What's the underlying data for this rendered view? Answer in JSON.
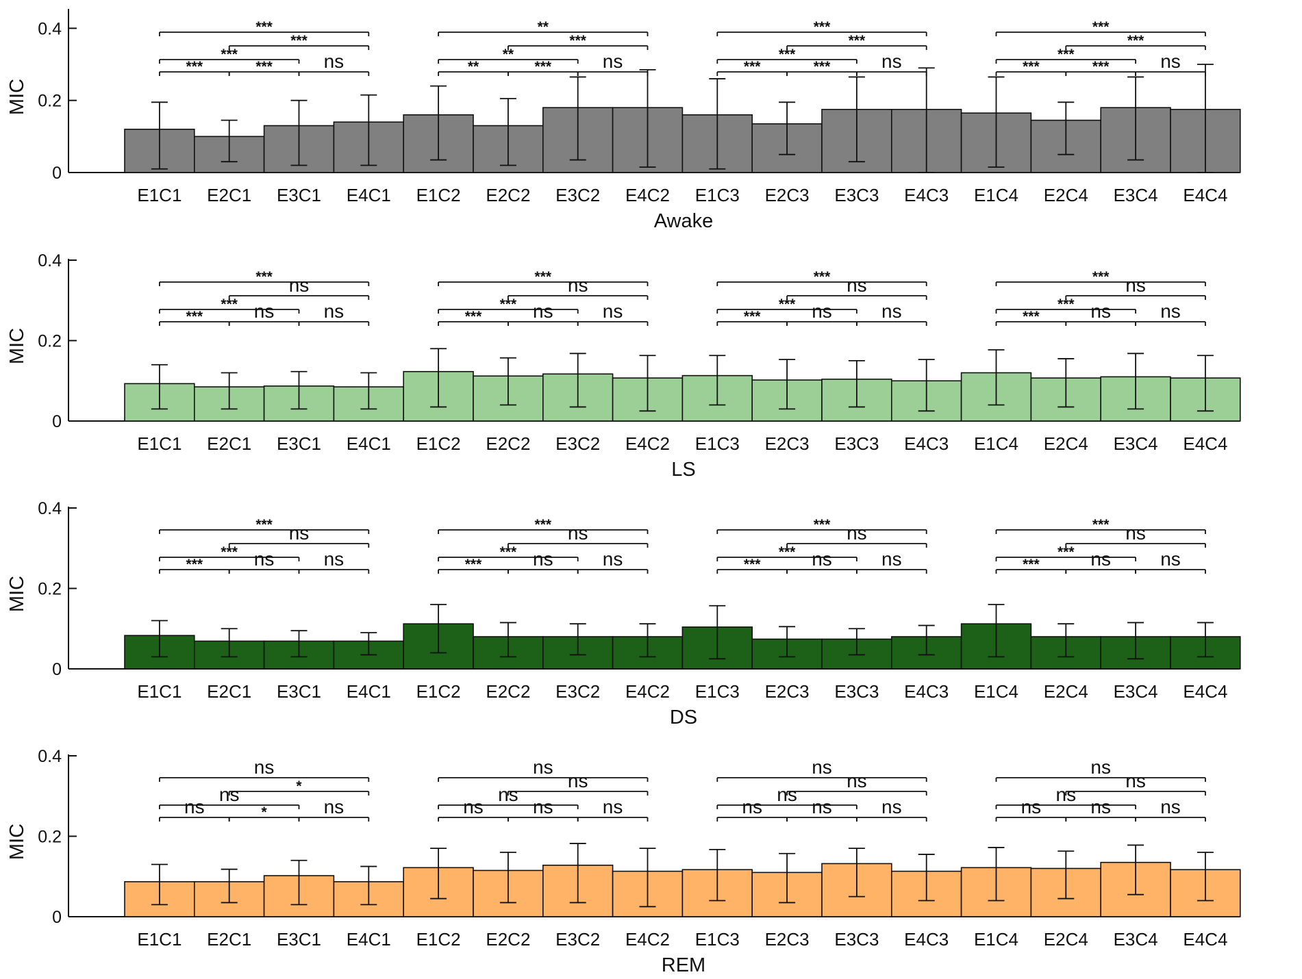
{
  "chart_data": [
    {
      "type": "bar",
      "title": "",
      "xlabel": "Awake",
      "ylabel": "MIC",
      "ylim": [
        0,
        0.45
      ],
      "yticks": [
        "0",
        "0.2",
        "0.4"
      ],
      "color": "#808080",
      "categories": [
        "E1C1",
        "E2C1",
        "E3C1",
        "E4C1",
        "E1C2",
        "E2C2",
        "E3C2",
        "E4C2",
        "E1C3",
        "E2C3",
        "E3C3",
        "E4C3",
        "E1C4",
        "E2C4",
        "E3C4",
        "E4C4"
      ],
      "values": [
        0.12,
        0.1,
        0.13,
        0.14,
        0.16,
        0.13,
        0.18,
        0.18,
        0.16,
        0.135,
        0.175,
        0.175,
        0.165,
        0.145,
        0.18,
        0.175
      ],
      "error_low": [
        0.01,
        0.03,
        0.02,
        0.02,
        0.035,
        0.02,
        0.035,
        0.015,
        0.01,
        0.05,
        0.03,
        0.0,
        0.015,
        0.05,
        0.035,
        0.0
      ],
      "error_high": [
        0.195,
        0.145,
        0.2,
        0.215,
        0.24,
        0.205,
        0.265,
        0.285,
        0.26,
        0.195,
        0.265,
        0.29,
        0.265,
        0.195,
        0.265,
        0.3
      ],
      "significance": [
        {
          "group": 1,
          "from": 1,
          "to": 2,
          "label": "***",
          "level": 0
        },
        {
          "group": 1,
          "from": 2,
          "to": 3,
          "label": "***",
          "level": 0
        },
        {
          "group": 1,
          "from": 3,
          "to": 4,
          "label": "ns",
          "level": 0
        },
        {
          "group": 1,
          "from": 1,
          "to": 3,
          "label": "***",
          "level": 1
        },
        {
          "group": 1,
          "from": 2,
          "to": 4,
          "label": "***",
          "level": 2
        },
        {
          "group": 1,
          "from": 1,
          "to": 4,
          "label": "***",
          "level": 3
        },
        {
          "group": 2,
          "from": 1,
          "to": 2,
          "label": "**",
          "level": 0
        },
        {
          "group": 2,
          "from": 2,
          "to": 3,
          "label": "***",
          "level": 0
        },
        {
          "group": 2,
          "from": 3,
          "to": 4,
          "label": "ns",
          "level": 0
        },
        {
          "group": 2,
          "from": 1,
          "to": 3,
          "label": "**",
          "level": 1
        },
        {
          "group": 2,
          "from": 2,
          "to": 4,
          "label": "***",
          "level": 2
        },
        {
          "group": 2,
          "from": 1,
          "to": 4,
          "label": "**",
          "level": 3
        },
        {
          "group": 3,
          "from": 1,
          "to": 2,
          "label": "***",
          "level": 0
        },
        {
          "group": 3,
          "from": 2,
          "to": 3,
          "label": "***",
          "level": 0
        },
        {
          "group": 3,
          "from": 3,
          "to": 4,
          "label": "ns",
          "level": 0
        },
        {
          "group": 3,
          "from": 1,
          "to": 3,
          "label": "***",
          "level": 1
        },
        {
          "group": 3,
          "from": 2,
          "to": 4,
          "label": "***",
          "level": 2
        },
        {
          "group": 3,
          "from": 1,
          "to": 4,
          "label": "***",
          "level": 3
        },
        {
          "group": 4,
          "from": 1,
          "to": 2,
          "label": "***",
          "level": 0
        },
        {
          "group": 4,
          "from": 2,
          "to": 3,
          "label": "***",
          "level": 0
        },
        {
          "group": 4,
          "from": 3,
          "to": 4,
          "label": "ns",
          "level": 0
        },
        {
          "group": 4,
          "from": 1,
          "to": 3,
          "label": "***",
          "level": 1
        },
        {
          "group": 4,
          "from": 2,
          "to": 4,
          "label": "***",
          "level": 2
        },
        {
          "group": 4,
          "from": 1,
          "to": 4,
          "label": "***",
          "level": 3
        }
      ]
    },
    {
      "type": "bar",
      "title": "",
      "xlabel": "LS",
      "ylabel": "MIC",
      "ylim": [
        0,
        0.4
      ],
      "yticks": [
        "0",
        "0.2",
        "0.4"
      ],
      "color": "#9ccf96",
      "categories": [
        "E1C1",
        "E2C1",
        "E3C1",
        "E4C1",
        "E1C2",
        "E2C2",
        "E3C2",
        "E4C2",
        "E1C3",
        "E2C3",
        "E3C3",
        "E4C3",
        "E1C4",
        "E2C4",
        "E3C4",
        "E4C4"
      ],
      "values": [
        0.093,
        0.085,
        0.087,
        0.085,
        0.123,
        0.112,
        0.117,
        0.107,
        0.113,
        0.102,
        0.104,
        0.1,
        0.12,
        0.107,
        0.11,
        0.107
      ],
      "error_low": [
        0.03,
        0.03,
        0.03,
        0.03,
        0.035,
        0.04,
        0.035,
        0.025,
        0.04,
        0.03,
        0.035,
        0.025,
        0.04,
        0.035,
        0.03,
        0.025
      ],
      "error_high": [
        0.14,
        0.12,
        0.123,
        0.12,
        0.18,
        0.157,
        0.168,
        0.163,
        0.163,
        0.153,
        0.15,
        0.153,
        0.177,
        0.155,
        0.168,
        0.163
      ],
      "significance": [
        {
          "group": 1,
          "from": 1,
          "to": 2,
          "label": "***",
          "level": 0
        },
        {
          "group": 1,
          "from": 2,
          "to": 3,
          "label": "ns",
          "level": 0
        },
        {
          "group": 1,
          "from": 3,
          "to": 4,
          "label": "ns",
          "level": 0
        },
        {
          "group": 1,
          "from": 1,
          "to": 3,
          "label": "***",
          "level": 1
        },
        {
          "group": 1,
          "from": 2,
          "to": 4,
          "label": "ns",
          "level": 2
        },
        {
          "group": 1,
          "from": 1,
          "to": 4,
          "label": "***",
          "level": 3
        },
        {
          "group": 2,
          "from": 1,
          "to": 2,
          "label": "***",
          "level": 0
        },
        {
          "group": 2,
          "from": 2,
          "to": 3,
          "label": "ns",
          "level": 0
        },
        {
          "group": 2,
          "from": 3,
          "to": 4,
          "label": "ns",
          "level": 0
        },
        {
          "group": 2,
          "from": 1,
          "to": 3,
          "label": "***",
          "level": 1
        },
        {
          "group": 2,
          "from": 2,
          "to": 4,
          "label": "ns",
          "level": 2
        },
        {
          "group": 2,
          "from": 1,
          "to": 4,
          "label": "***",
          "level": 3
        },
        {
          "group": 3,
          "from": 1,
          "to": 2,
          "label": "***",
          "level": 0
        },
        {
          "group": 3,
          "from": 2,
          "to": 3,
          "label": "ns",
          "level": 0
        },
        {
          "group": 3,
          "from": 3,
          "to": 4,
          "label": "ns",
          "level": 0
        },
        {
          "group": 3,
          "from": 1,
          "to": 3,
          "label": "***",
          "level": 1
        },
        {
          "group": 3,
          "from": 2,
          "to": 4,
          "label": "ns",
          "level": 2
        },
        {
          "group": 3,
          "from": 1,
          "to": 4,
          "label": "***",
          "level": 3
        },
        {
          "group": 4,
          "from": 1,
          "to": 2,
          "label": "***",
          "level": 0
        },
        {
          "group": 4,
          "from": 2,
          "to": 3,
          "label": "ns",
          "level": 0
        },
        {
          "group": 4,
          "from": 3,
          "to": 4,
          "label": "ns",
          "level": 0
        },
        {
          "group": 4,
          "from": 1,
          "to": 3,
          "label": "***",
          "level": 1
        },
        {
          "group": 4,
          "from": 2,
          "to": 4,
          "label": "ns",
          "level": 2
        },
        {
          "group": 4,
          "from": 1,
          "to": 4,
          "label": "***",
          "level": 3
        }
      ]
    },
    {
      "type": "bar",
      "title": "",
      "xlabel": "DS",
      "ylabel": "MIC",
      "ylim": [
        0,
        0.4
      ],
      "yticks": [
        "0",
        "0.2",
        "0.4"
      ],
      "color": "#1d6119",
      "categories": [
        "E1C1",
        "E2C1",
        "E3C1",
        "E4C1",
        "E1C2",
        "E2C2",
        "E3C2",
        "E4C2",
        "E1C3",
        "E2C3",
        "E3C3",
        "E4C3",
        "E1C4",
        "E2C4",
        "E3C4",
        "E4C4"
      ],
      "values": [
        0.083,
        0.069,
        0.069,
        0.069,
        0.112,
        0.08,
        0.08,
        0.08,
        0.104,
        0.074,
        0.074,
        0.08,
        0.112,
        0.08,
        0.08,
        0.08
      ],
      "error_low": [
        0.03,
        0.03,
        0.03,
        0.035,
        0.04,
        0.03,
        0.035,
        0.03,
        0.025,
        0.03,
        0.035,
        0.035,
        0.03,
        0.03,
        0.025,
        0.03
      ],
      "error_high": [
        0.12,
        0.1,
        0.095,
        0.09,
        0.16,
        0.115,
        0.112,
        0.112,
        0.157,
        0.105,
        0.1,
        0.108,
        0.16,
        0.112,
        0.115,
        0.115
      ],
      "significance": [
        {
          "group": 1,
          "from": 1,
          "to": 2,
          "label": "***",
          "level": 0
        },
        {
          "group": 1,
          "from": 2,
          "to": 3,
          "label": "ns",
          "level": 0
        },
        {
          "group": 1,
          "from": 3,
          "to": 4,
          "label": "ns",
          "level": 0
        },
        {
          "group": 1,
          "from": 1,
          "to": 3,
          "label": "***",
          "level": 1
        },
        {
          "group": 1,
          "from": 2,
          "to": 4,
          "label": "ns",
          "level": 2
        },
        {
          "group": 1,
          "from": 1,
          "to": 4,
          "label": "***",
          "level": 3
        },
        {
          "group": 2,
          "from": 1,
          "to": 2,
          "label": "***",
          "level": 0
        },
        {
          "group": 2,
          "from": 2,
          "to": 3,
          "label": "ns",
          "level": 0
        },
        {
          "group": 2,
          "from": 3,
          "to": 4,
          "label": "ns",
          "level": 0
        },
        {
          "group": 2,
          "from": 1,
          "to": 3,
          "label": "***",
          "level": 1
        },
        {
          "group": 2,
          "from": 2,
          "to": 4,
          "label": "ns",
          "level": 2
        },
        {
          "group": 2,
          "from": 1,
          "to": 4,
          "label": "***",
          "level": 3
        },
        {
          "group": 3,
          "from": 1,
          "to": 2,
          "label": "***",
          "level": 0
        },
        {
          "group": 3,
          "from": 2,
          "to": 3,
          "label": "ns",
          "level": 0
        },
        {
          "group": 3,
          "from": 3,
          "to": 4,
          "label": "ns",
          "level": 0
        },
        {
          "group": 3,
          "from": 1,
          "to": 3,
          "label": "***",
          "level": 1
        },
        {
          "group": 3,
          "from": 2,
          "to": 4,
          "label": "ns",
          "level": 2
        },
        {
          "group": 3,
          "from": 1,
          "to": 4,
          "label": "***",
          "level": 3
        },
        {
          "group": 4,
          "from": 1,
          "to": 2,
          "label": "***",
          "level": 0
        },
        {
          "group": 4,
          "from": 2,
          "to": 3,
          "label": "ns",
          "level": 0
        },
        {
          "group": 4,
          "from": 3,
          "to": 4,
          "label": "ns",
          "level": 0
        },
        {
          "group": 4,
          "from": 1,
          "to": 3,
          "label": "***",
          "level": 1
        },
        {
          "group": 4,
          "from": 2,
          "to": 4,
          "label": "ns",
          "level": 2
        },
        {
          "group": 4,
          "from": 1,
          "to": 4,
          "label": "***",
          "level": 3
        }
      ]
    },
    {
      "type": "bar",
      "title": "",
      "xlabel": "REM",
      "ylabel": "MIC",
      "ylim": [
        0,
        0.4
      ],
      "yticks": [
        "0",
        "0.2",
        "0.4"
      ],
      "color": "#ffb366",
      "categories": [
        "E1C1",
        "E2C1",
        "E3C1",
        "E4C1",
        "E1C2",
        "E2C2",
        "E3C2",
        "E4C2",
        "E1C3",
        "E2C3",
        "E3C3",
        "E4C3",
        "E1C4",
        "E2C4",
        "E3C4",
        "E4C4"
      ],
      "values": [
        0.087,
        0.087,
        0.102,
        0.087,
        0.122,
        0.115,
        0.128,
        0.113,
        0.117,
        0.11,
        0.132,
        0.113,
        0.122,
        0.12,
        0.135,
        0.117
      ],
      "error_low": [
        0.03,
        0.035,
        0.03,
        0.03,
        0.045,
        0.035,
        0.035,
        0.025,
        0.04,
        0.035,
        0.05,
        0.04,
        0.04,
        0.045,
        0.055,
        0.04
      ],
      "error_high": [
        0.13,
        0.118,
        0.14,
        0.125,
        0.17,
        0.16,
        0.182,
        0.17,
        0.167,
        0.157,
        0.17,
        0.155,
        0.172,
        0.163,
        0.178,
        0.16
      ],
      "significance": [
        {
          "group": 1,
          "from": 1,
          "to": 2,
          "label": "ns",
          "level": 0
        },
        {
          "group": 1,
          "from": 2,
          "to": 3,
          "label": "*",
          "level": 0
        },
        {
          "group": 1,
          "from": 3,
          "to": 4,
          "label": "ns",
          "level": 0
        },
        {
          "group": 1,
          "from": 1,
          "to": 3,
          "label": "ns",
          "level": 1
        },
        {
          "group": 1,
          "from": 2,
          "to": 4,
          "label": "*",
          "level": 2
        },
        {
          "group": 1,
          "from": 1,
          "to": 4,
          "label": "ns",
          "level": 3
        },
        {
          "group": 2,
          "from": 1,
          "to": 2,
          "label": "ns",
          "level": 0
        },
        {
          "group": 2,
          "from": 2,
          "to": 3,
          "label": "ns",
          "level": 0
        },
        {
          "group": 2,
          "from": 3,
          "to": 4,
          "label": "ns",
          "level": 0
        },
        {
          "group": 2,
          "from": 1,
          "to": 3,
          "label": "ns",
          "level": 1
        },
        {
          "group": 2,
          "from": 2,
          "to": 4,
          "label": "ns",
          "level": 2
        },
        {
          "group": 2,
          "from": 1,
          "to": 4,
          "label": "ns",
          "level": 3
        },
        {
          "group": 3,
          "from": 1,
          "to": 2,
          "label": "ns",
          "level": 0
        },
        {
          "group": 3,
          "from": 2,
          "to": 3,
          "label": "ns",
          "level": 0
        },
        {
          "group": 3,
          "from": 3,
          "to": 4,
          "label": "ns",
          "level": 0
        },
        {
          "group": 3,
          "from": 1,
          "to": 3,
          "label": "ns",
          "level": 1
        },
        {
          "group": 3,
          "from": 2,
          "to": 4,
          "label": "ns",
          "level": 2
        },
        {
          "group": 3,
          "from": 1,
          "to": 4,
          "label": "ns",
          "level": 3
        },
        {
          "group": 4,
          "from": 1,
          "to": 2,
          "label": "ns",
          "level": 0
        },
        {
          "group": 4,
          "from": 2,
          "to": 3,
          "label": "ns",
          "level": 0
        },
        {
          "group": 4,
          "from": 3,
          "to": 4,
          "label": "ns",
          "level": 0
        },
        {
          "group": 4,
          "from": 1,
          "to": 3,
          "label": "ns",
          "level": 1
        },
        {
          "group": 4,
          "from": 2,
          "to": 4,
          "label": "ns",
          "level": 2
        },
        {
          "group": 4,
          "from": 1,
          "to": 4,
          "label": "ns",
          "level": 3
        }
      ]
    }
  ]
}
